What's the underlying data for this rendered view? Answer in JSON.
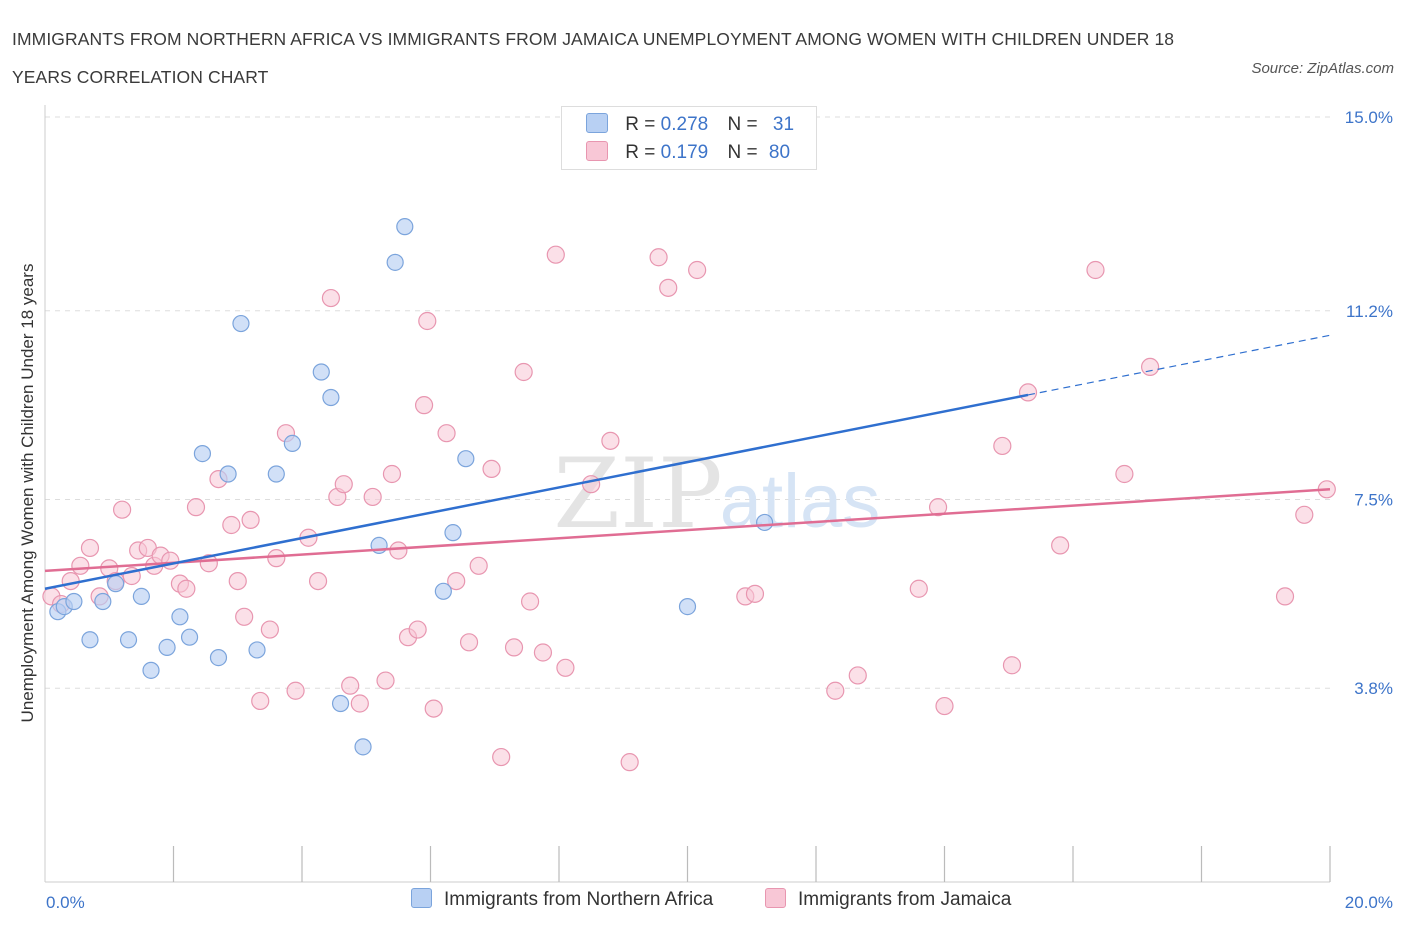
{
  "title": "IMMIGRANTS FROM NORTHERN AFRICA VS IMMIGRANTS FROM JAMAICA UNEMPLOYMENT AMONG WOMEN WITH CHILDREN UNDER 18 YEARS CORRELATION CHART",
  "source": "Source: ZipAtlas.com",
  "watermark": {
    "zip": "ZIP",
    "atlas": "atlas"
  },
  "legend": {
    "africa": {
      "r_label": "R =",
      "r_value": "0.278",
      "n_label": "N =",
      "n_value": "31"
    },
    "jamaica": {
      "r_label": "R =",
      "r_value": "0.179",
      "n_label": "N =",
      "n_value": "80"
    }
  },
  "colors": {
    "africa_fill": "#b8d0f3",
    "africa_stroke": "#7ba4dc",
    "africa_line": "#2f6fcf",
    "jamaica_fill": "#f8c7d6",
    "jamaica_stroke": "#e896b0",
    "jamaica_line": "#e06d93",
    "tick_label": "#3d74c9",
    "grid": "#dddddd"
  },
  "chart_data": {
    "type": "scatter",
    "title": "IMMIGRANTS FROM NORTHERN AFRICA VS IMMIGRANTS FROM JAMAICA UNEMPLOYMENT AMONG WOMEN WITH CHILDREN UNDER 18 YEARS CORRELATION CHART",
    "xlabel": "",
    "ylabel": "Unemployment Among Women with Children Under 18 years",
    "xlim": [
      0,
      20
    ],
    "ylim": [
      0,
      15
    ],
    "x_tick_labels": [
      "0.0%",
      "20.0%"
    ],
    "y_ticks": [
      3.8,
      7.5,
      11.2,
      15.0
    ],
    "y_tick_labels": [
      "3.8%",
      "7.5%",
      "11.2%",
      "15.0%"
    ],
    "grid": true,
    "legend_position": "top-center",
    "series": [
      {
        "name": "Immigrants from Northern Africa",
        "r": 0.278,
        "n": 31,
        "trend": {
          "x0": 0,
          "y0": 5.75,
          "x1": 15.3,
          "y1": 9.55,
          "x_end": 20,
          "y_end": 10.72
        },
        "points": [
          [
            0.2,
            5.3
          ],
          [
            0.3,
            5.4
          ],
          [
            0.45,
            5.5
          ],
          [
            0.7,
            4.75
          ],
          [
            0.9,
            5.5
          ],
          [
            1.1,
            5.85
          ],
          [
            1.3,
            4.75
          ],
          [
            1.5,
            5.6
          ],
          [
            1.65,
            4.15
          ],
          [
            1.9,
            4.6
          ],
          [
            2.1,
            5.2
          ],
          [
            2.25,
            4.8
          ],
          [
            2.45,
            8.4
          ],
          [
            2.7,
            4.4
          ],
          [
            2.85,
            8.0
          ],
          [
            3.05,
            10.95
          ],
          [
            3.3,
            4.55
          ],
          [
            3.6,
            8.0
          ],
          [
            3.85,
            8.6
          ],
          [
            4.3,
            10.0
          ],
          [
            4.45,
            9.5
          ],
          [
            4.6,
            3.5
          ],
          [
            4.95,
            2.65
          ],
          [
            5.2,
            6.6
          ],
          [
            5.45,
            12.15
          ],
          [
            5.6,
            12.85
          ],
          [
            6.2,
            5.7
          ],
          [
            6.35,
            6.85
          ],
          [
            6.55,
            8.3
          ],
          [
            10.0,
            5.4
          ],
          [
            11.2,
            7.05
          ]
        ]
      },
      {
        "name": "Immigrants from Jamaica",
        "r": 0.179,
        "n": 80,
        "trend": {
          "x0": 0,
          "y0": 6.1,
          "x1": 20,
          "y1": 7.7
        },
        "points": [
          [
            0.1,
            5.6
          ],
          [
            0.25,
            5.45
          ],
          [
            0.4,
            5.9
          ],
          [
            0.55,
            6.2
          ],
          [
            0.7,
            6.55
          ],
          [
            0.85,
            5.6
          ],
          [
            1.0,
            6.15
          ],
          [
            1.1,
            5.9
          ],
          [
            1.2,
            7.3
          ],
          [
            1.35,
            6.0
          ],
          [
            1.45,
            6.5
          ],
          [
            1.6,
            6.55
          ],
          [
            1.7,
            6.2
          ],
          [
            1.8,
            6.4
          ],
          [
            1.95,
            6.3
          ],
          [
            2.1,
            5.85
          ],
          [
            2.2,
            5.75
          ],
          [
            2.35,
            7.35
          ],
          [
            2.55,
            6.25
          ],
          [
            2.7,
            7.9
          ],
          [
            2.9,
            7.0
          ],
          [
            3.0,
            5.9
          ],
          [
            3.1,
            5.2
          ],
          [
            3.2,
            7.1
          ],
          [
            3.35,
            3.55
          ],
          [
            3.5,
            4.95
          ],
          [
            3.6,
            6.35
          ],
          [
            3.75,
            8.8
          ],
          [
            3.9,
            3.75
          ],
          [
            4.1,
            6.75
          ],
          [
            4.25,
            5.9
          ],
          [
            4.45,
            11.45
          ],
          [
            4.55,
            7.55
          ],
          [
            4.65,
            7.8
          ],
          [
            4.75,
            3.85
          ],
          [
            4.9,
            3.5
          ],
          [
            5.1,
            7.55
          ],
          [
            5.3,
            3.95
          ],
          [
            5.4,
            8.0
          ],
          [
            5.5,
            6.5
          ],
          [
            5.65,
            4.8
          ],
          [
            5.8,
            4.95
          ],
          [
            5.9,
            9.35
          ],
          [
            5.95,
            11.0
          ],
          [
            6.05,
            3.4
          ],
          [
            6.25,
            8.8
          ],
          [
            6.4,
            5.9
          ],
          [
            6.6,
            4.7
          ],
          [
            6.75,
            6.2
          ],
          [
            6.95,
            8.1
          ],
          [
            7.1,
            2.45
          ],
          [
            7.3,
            4.6
          ],
          [
            7.45,
            10.0
          ],
          [
            7.55,
            5.5
          ],
          [
            7.75,
            4.5
          ],
          [
            7.95,
            12.3
          ],
          [
            8.1,
            4.2
          ],
          [
            8.5,
            7.8
          ],
          [
            8.8,
            8.65
          ],
          [
            9.1,
            2.35
          ],
          [
            9.55,
            12.25
          ],
          [
            9.7,
            11.65
          ],
          [
            10.15,
            12.0
          ],
          [
            10.9,
            5.6
          ],
          [
            11.05,
            5.65
          ],
          [
            12.3,
            3.75
          ],
          [
            12.65,
            4.05
          ],
          [
            13.6,
            5.75
          ],
          [
            13.9,
            7.35
          ],
          [
            14.0,
            3.45
          ],
          [
            14.9,
            8.55
          ],
          [
            15.05,
            4.25
          ],
          [
            15.3,
            9.6
          ],
          [
            15.8,
            6.6
          ],
          [
            16.35,
            12.0
          ],
          [
            16.8,
            8.0
          ],
          [
            17.2,
            10.1
          ],
          [
            19.3,
            5.6
          ],
          [
            19.6,
            7.2
          ],
          [
            19.95,
            7.7
          ]
        ]
      }
    ]
  }
}
